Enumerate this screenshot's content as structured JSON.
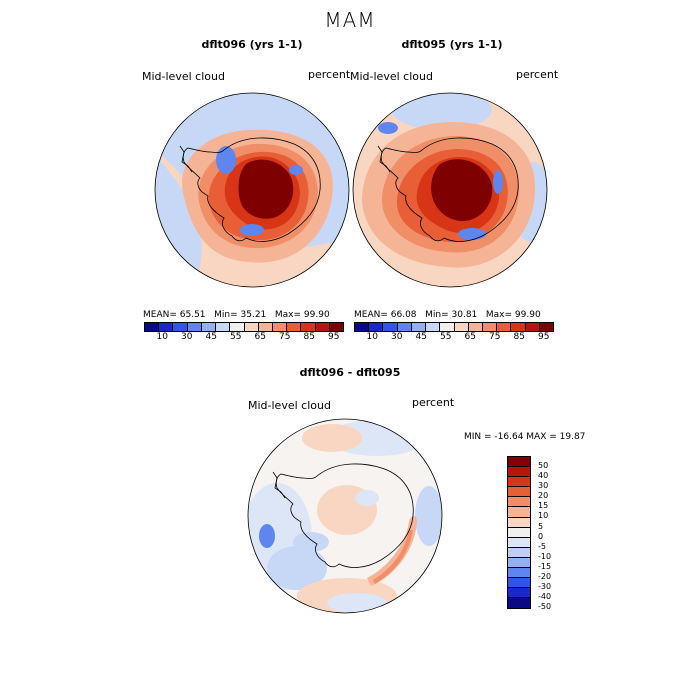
{
  "title": "MAM",
  "panels": [
    {
      "title": "dflt096 (yrs 1-1)",
      "variable": "Mid-level cloud",
      "units": "percent",
      "stats": {
        "mean_label": "MEAN=",
        "mean": "65.51",
        "min_label": "Min=",
        "min": "35.21",
        "max_label": "Max=",
        "max": "99.90"
      }
    },
    {
      "title": "dflt095 (yrs 1-1)",
      "variable": "Mid-level cloud",
      "units": "percent",
      "stats": {
        "mean_label": "MEAN=",
        "mean": "66.08",
        "min_label": "Min=",
        "min": "30.81",
        "max_label": "Max=",
        "max": "99.90"
      }
    }
  ],
  "colorbar": {
    "ticks": [
      "10",
      "30",
      "45",
      "55",
      "65",
      "75",
      "85",
      "95"
    ],
    "colors": [
      "#0a0a84",
      "#1a28c8",
      "#2e56e8",
      "#5f86ee",
      "#93b0f0",
      "#c7d8f6",
      "#f0f0f0",
      "#f9d6c2",
      "#f6b496",
      "#f08e68",
      "#e85f37",
      "#d83516",
      "#b8140a",
      "#7e0000"
    ]
  },
  "diff": {
    "title": "dflt096 - dflt095",
    "variable": "Mid-level cloud",
    "units": "percent",
    "minmax_label": "MIN = -16.64 MAX =  19.87",
    "colorbar_labels": [
      "50",
      "40",
      "30",
      "20",
      "15",
      "10",
      "5",
      "0",
      "-5",
      "-10",
      "-15",
      "-20",
      "-30",
      "-40",
      "-50"
    ],
    "colorbar_colors": [
      "#7e0000",
      "#b8140a",
      "#d83516",
      "#e85f37",
      "#f08e68",
      "#f6b496",
      "#f9d6c2",
      "#f0f0f0",
      "#dce6f6",
      "#bcd0f2",
      "#93b0f0",
      "#5f86ee",
      "#2e56e8",
      "#1a28c8",
      "#0a0a84"
    ]
  },
  "map_palette": {
    "ocean_blue": "#c7d8f6",
    "ocean_light": "#dce6f6",
    "ocean_peach": "#f9d6c2",
    "ring_salmon": "#f6b496",
    "ring_orange": "#f08e68",
    "coast_red": "#e85f37",
    "inner_red": "#d83516",
    "interior_dark": "#7e0000",
    "blue_patch": "#5f86ee",
    "diff_white": "#f7f3f0"
  }
}
